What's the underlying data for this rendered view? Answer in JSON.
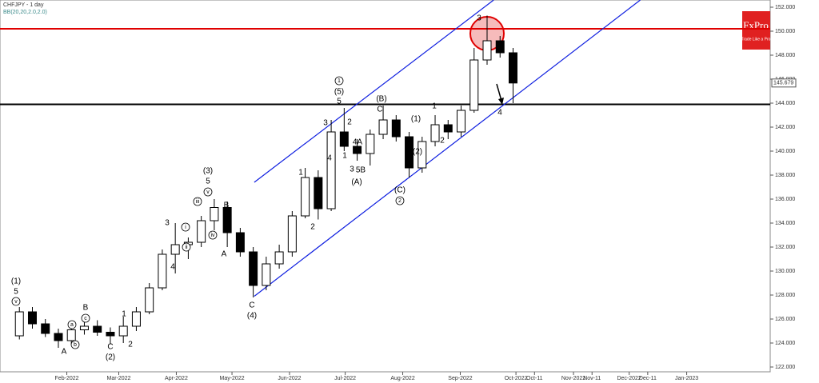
{
  "chart_data": {
    "type": "candlestick",
    "title": "CHFJPY - 1 day",
    "subtitle": "BB(20,20,2.0,2.0)",
    "logo": {
      "name": "FxPro",
      "tagline": "Trade Like a Pro"
    },
    "x": [
      "2022-01-03",
      "2022-01-10",
      "2022-01-17",
      "2022-01-24",
      "2022-01-31",
      "2022-02-07",
      "2022-02-14",
      "2022-02-21",
      "2022-02-28",
      "2022-03-07",
      "2022-03-14",
      "2022-03-21",
      "2022-03-28",
      "2022-04-04",
      "2022-04-11",
      "2022-04-18",
      "2022-04-25",
      "2022-05-02",
      "2022-05-09",
      "2022-05-16",
      "2022-05-23",
      "2022-05-30",
      "2022-06-06",
      "2022-06-13",
      "2022-06-20",
      "2022-06-27",
      "2022-07-04",
      "2022-07-11",
      "2022-07-18",
      "2022-07-25",
      "2022-08-01",
      "2022-08-08",
      "2022-08-15",
      "2022-08-22",
      "2022-08-29",
      "2022-09-05",
      "2022-09-12",
      "2022-09-19",
      "2022-09-26"
    ],
    "open": [
      124.6,
      126.6,
      125.6,
      124.8,
      124.2,
      125.1,
      125.4,
      124.9,
      124.6,
      125.4,
      126.6,
      128.6,
      131.4,
      132.2,
      132.4,
      134.2,
      135.3,
      133.2,
      131.6,
      128.8,
      130.6,
      131.6,
      134.6,
      137.8,
      135.2,
      141.6,
      140.4,
      139.8,
      141.4,
      142.6,
      141.2,
      138.6,
      140.8,
      142.2,
      141.6,
      143.4,
      147.6,
      149.2,
      148.2
    ],
    "high": [
      127.0,
      127.0,
      126.0,
      125.2,
      125.6,
      126.0,
      125.9,
      125.3,
      126.2,
      127.0,
      129.0,
      131.8,
      134.0,
      132.8,
      134.6,
      136.0,
      135.8,
      133.6,
      132.0,
      131.2,
      132.2,
      135.0,
      138.6,
      138.4,
      142.6,
      143.6,
      141.0,
      141.8,
      143.8,
      143.0,
      141.6,
      141.2,
      143.0,
      142.6,
      143.8,
      148.6,
      151.3,
      149.6,
      148.6
    ],
    "low": [
      124.3,
      125.2,
      124.5,
      123.6,
      123.9,
      124.7,
      124.6,
      123.9,
      124.0,
      125.0,
      126.4,
      128.4,
      129.8,
      131.0,
      132.0,
      133.4,
      132.0,
      131.2,
      127.8,
      128.4,
      130.2,
      131.2,
      134.4,
      134.3,
      135.0,
      140.0,
      139.2,
      138.8,
      141.0,
      140.8,
      137.8,
      138.2,
      140.4,
      141.0,
      141.2,
      143.2,
      147.2,
      147.8,
      144.0
    ],
    "close": [
      126.6,
      125.6,
      124.8,
      124.2,
      125.1,
      125.4,
      124.9,
      124.6,
      125.4,
      126.6,
      128.6,
      131.4,
      132.2,
      132.4,
      134.2,
      135.3,
      133.2,
      131.6,
      128.8,
      130.6,
      131.6,
      134.6,
      137.8,
      135.2,
      141.6,
      140.4,
      139.8,
      141.4,
      142.6,
      141.2,
      138.6,
      140.8,
      142.2,
      141.6,
      143.4,
      147.6,
      149.2,
      148.2,
      145.679
    ],
    "up_color": "#ffffff",
    "down_color": "#000000",
    "xlim": [
      "2021-12-27",
      "2023-02-15"
    ],
    "xticks": [
      {
        "value": "2022-02-01",
        "label": "Feb-2022"
      },
      {
        "value": "2022-03-01",
        "label": "Mar-2022"
      },
      {
        "value": "2022-04-01",
        "label": "Apr-2022"
      },
      {
        "value": "2022-05-01",
        "label": "May-2022"
      },
      {
        "value": "2022-06-01",
        "label": "Jun-2022"
      },
      {
        "value": "2022-07-01",
        "label": "Jul-2022"
      },
      {
        "value": "2022-08-01",
        "label": "Aug-2022"
      },
      {
        "value": "2022-09-01",
        "label": "Sep-2022"
      },
      {
        "value": "2022-10-01",
        "label": "Oct-2022"
      },
      {
        "value": "2022-10-11",
        "label": "Oct-11"
      },
      {
        "value": "2022-11-01",
        "label": "Nov-2022"
      },
      {
        "value": "2022-11-11",
        "label": "Nov-11"
      },
      {
        "value": "2022-12-01",
        "label": "Dec-2022"
      },
      {
        "value": "2022-12-11",
        "label": "Dec-11"
      },
      {
        "value": "2023-01-01",
        "label": "Jan-2023"
      }
    ],
    "ylim": [
      121.6,
      152.6
    ],
    "yticks": [
      {
        "value": 122,
        "label": "122.000"
      },
      {
        "value": 124,
        "label": "124.000"
      },
      {
        "value": 126,
        "label": "126.000"
      },
      {
        "value": 128,
        "label": "128.000"
      },
      {
        "value": 130,
        "label": "130.000"
      },
      {
        "value": 132,
        "label": "132.000"
      },
      {
        "value": 134,
        "label": "134.000"
      },
      {
        "value": 136,
        "label": "136.000"
      },
      {
        "value": 138,
        "label": "138.000"
      },
      {
        "value": 140,
        "label": "140.000"
      },
      {
        "value": 142,
        "label": "142.000"
      },
      {
        "value": 144,
        "label": "144.000"
      },
      {
        "value": 146,
        "label": "146.000"
      },
      {
        "value": 148,
        "label": "148.000"
      },
      {
        "value": 150,
        "label": "150.000"
      },
      {
        "value": 152,
        "label": "152.000"
      }
    ],
    "last_price": 145.679,
    "hlines": [
      {
        "value": 150.2,
        "color": "#e00000"
      },
      {
        "value": 143.9,
        "color": "#000000"
      }
    ],
    "trendlines": [
      {
        "x": [
          "2022-05-13",
          "2022-12-07"
        ],
        "y": [
          127.9,
          152.6
        ],
        "color": "#1020e0"
      },
      {
        "x": [
          "2022-05-13",
          "2022-09-19"
        ],
        "y": [
          137.4,
          152.6
        ],
        "color": "#1020e0"
      }
    ],
    "wave_labels": [
      "(1)",
      "5",
      "v",
      "A",
      "B",
      "c",
      "a",
      "b",
      "C",
      "(2)",
      "1",
      "2",
      "3",
      "4",
      "i",
      "ii",
      "iii",
      "iv",
      "(3)",
      "5",
      "v",
      "B",
      "A",
      "C",
      "(4)",
      "1",
      "2",
      "3",
      "4",
      "5",
      "(5)",
      "1",
      "2",
      "4A",
      "1",
      "3",
      "5B",
      "(A)",
      "(B)",
      "C",
      "(1)",
      "(2)",
      "2",
      "1",
      "(C)",
      "2",
      "3",
      "4"
    ]
  }
}
